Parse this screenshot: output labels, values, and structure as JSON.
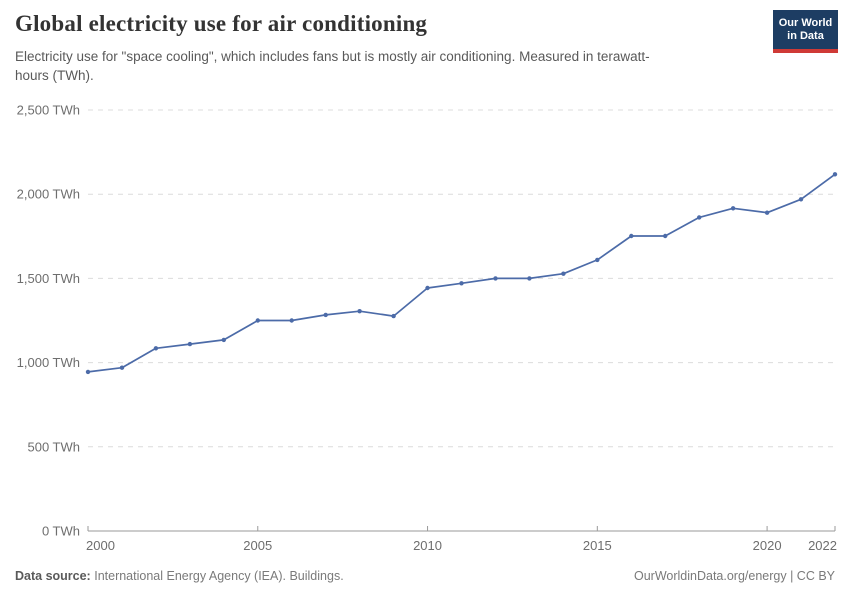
{
  "header": {
    "title": "Global electricity use for air conditioning",
    "subtitle": "Electricity use for \"space cooling\", which includes fans but is mostly air conditioning. Measured in terawatt-hours (TWh)."
  },
  "logo": {
    "line1": "Our World",
    "line2": "in Data",
    "bg_color": "#1d3d63",
    "bar_color": "#cf3a36",
    "text_color": "#ffffff"
  },
  "chart_data": {
    "type": "line",
    "title": "Global electricity use for air conditioning",
    "unit": "TWh",
    "x": [
      2000,
      2001,
      2002,
      2003,
      2004,
      2005,
      2006,
      2007,
      2008,
      2009,
      2010,
      2011,
      2012,
      2013,
      2014,
      2015,
      2016,
      2017,
      2018,
      2019,
      2020,
      2021,
      2022
    ],
    "values": [
      945,
      970,
      1085,
      1110,
      1135,
      1250,
      1250,
      1283,
      1305,
      1276,
      1443,
      1471,
      1500,
      1500,
      1528,
      1610,
      1752,
      1752,
      1862,
      1916,
      1890,
      1970,
      2118
    ],
    "xlim": [
      2000,
      2022
    ],
    "ylim": [
      0,
      2500
    ],
    "yticks": [
      0,
      500,
      1000,
      1500,
      2000,
      2500
    ],
    "ytick_labels": [
      "0 TWh",
      "500 TWh",
      "1,000 TWh",
      "1,500 TWh",
      "2,000 TWh",
      "2,500 TWh"
    ],
    "xticks": [
      2000,
      2005,
      2010,
      2015,
      2020,
      2022
    ],
    "xtick_labels": [
      "2000",
      "2005",
      "2010",
      "2015",
      "2020",
      "2022"
    ],
    "grid": "horizontal-dashed",
    "legend": "none",
    "line_color": "#4c6ba8",
    "grid_color": "#dcdcdc",
    "axis_color": "#9a9a9a",
    "tick_label_color": "#6e6e6e",
    "marker": "dot"
  },
  "footer": {
    "source_label": "Data source:",
    "source_text": "International Energy Agency (IEA). Buildings.",
    "credit": "OurWorldinData.org/energy | CC BY"
  }
}
